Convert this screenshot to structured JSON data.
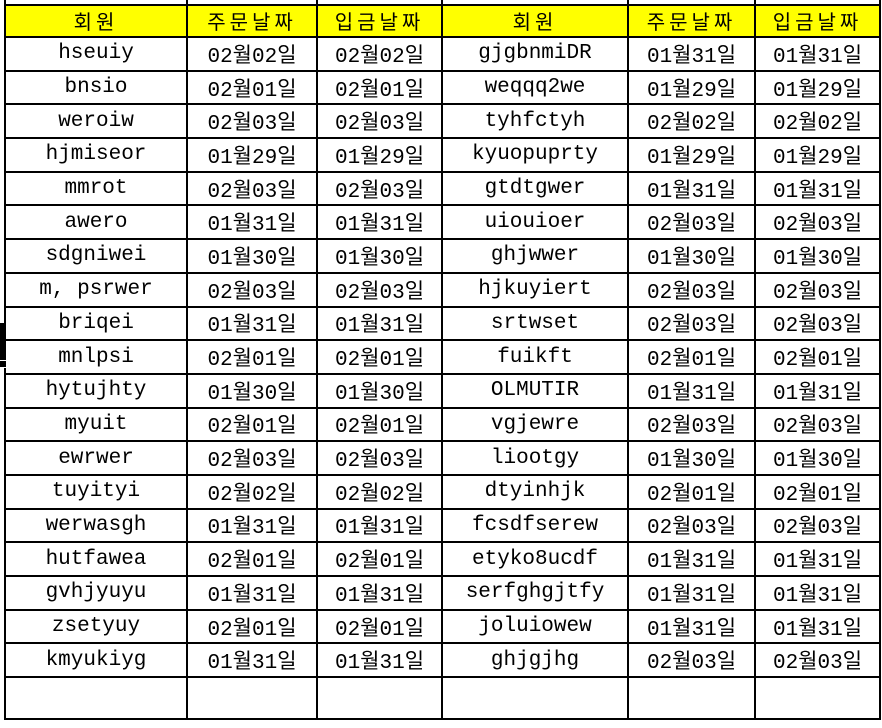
{
  "table": {
    "columns": [
      {
        "key": "member_left",
        "label": "회원"
      },
      {
        "key": "order_left",
        "label": "주문날짜"
      },
      {
        "key": "deposit_left",
        "label": "입금날짜"
      },
      {
        "key": "member_right",
        "label": "회원"
      },
      {
        "key": "order_right",
        "label": "주문날짜"
      },
      {
        "key": "deposit_right",
        "label": "입금날짜"
      }
    ],
    "rows": [
      [
        "hseuiy",
        "02월02일",
        "02월02일",
        "gjgbnmiDR",
        "01월31일",
        "01월31일"
      ],
      [
        "bnsio",
        "02월01일",
        "02월01일",
        "weqqq2we",
        "01월29일",
        "01월29일"
      ],
      [
        "weroiw",
        "02월03일",
        "02월03일",
        "tyhfctyh",
        "02월02일",
        "02월02일"
      ],
      [
        "hjmiseor",
        "01월29일",
        "01월29일",
        "kyuopuprty",
        "01월29일",
        "01월29일"
      ],
      [
        "mmrot",
        "02월03일",
        "02월03일",
        "gtdtgwer",
        "01월31일",
        "01월31일"
      ],
      [
        "awero",
        "01월31일",
        "01월31일",
        "uiouioer",
        "02월03일",
        "02월03일"
      ],
      [
        "sdgniwei",
        "01월30일",
        "01월30일",
        "ghjwwer",
        "01월30일",
        "01월30일"
      ],
      [
        "m, psrwer",
        "02월03일",
        "02월03일",
        "hjkuyiert",
        "02월03일",
        "02월03일"
      ],
      [
        "briqei",
        "01월31일",
        "01월31일",
        "srtwset",
        "02월03일",
        "02월03일"
      ],
      [
        "mnlpsi",
        "02월01일",
        "02월01일",
        "fuikft",
        "02월01일",
        "02월01일"
      ],
      [
        "hytujhty",
        "01월30일",
        "01월30일",
        "OLMUTIR",
        "01월31일",
        "01월31일"
      ],
      [
        "myuit",
        "02월01일",
        "02월01일",
        "vgjewre",
        "02월03일",
        "02월03일"
      ],
      [
        "ewrwer",
        "02월03일",
        "02월03일",
        "liootgy",
        "01월30일",
        "01월30일"
      ],
      [
        "tuyityi",
        "02월02일",
        "02월02일",
        "dtyinhjk",
        "02월01일",
        "02월01일"
      ],
      [
        "werwasgh",
        "01월31일",
        "01월31일",
        "fcsdfserew",
        "02월03일",
        "02월03일"
      ],
      [
        "hutfawea",
        "02월01일",
        "02월01일",
        "etyko8ucdf",
        "01월31일",
        "01월31일"
      ],
      [
        "gvhjyuyu",
        "01월31일",
        "01월31일",
        "serfghgjtfy",
        "01월31일",
        "01월31일"
      ],
      [
        "zsetyuy",
        "02월01일",
        "02월01일",
        "joluiowew",
        "01월31일",
        "01월31일"
      ],
      [
        "kmyukiyg",
        "01월31일",
        "01월31일",
        "ghjgjhg",
        "02월03일",
        "02월03일"
      ]
    ]
  },
  "colors": {
    "header_bg": "#ffff00",
    "grid_line": "#000000",
    "cell_bg": "#ffffff",
    "text": "#000000"
  }
}
